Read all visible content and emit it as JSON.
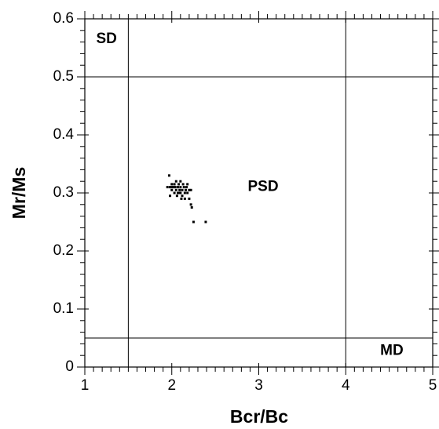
{
  "chart_data": {
    "type": "scatter",
    "xlabel": "Bcr/Bc",
    "ylabel": "Mr/Ms",
    "xlim": [
      1,
      5
    ],
    "ylim": [
      0,
      0.6
    ],
    "xticks": [
      1,
      2,
      3,
      4,
      5
    ],
    "yticks": [
      0,
      0.1,
      0.2,
      0.3,
      0.4,
      0.5,
      0.6
    ],
    "color": "#000000",
    "reference_lines": {
      "x": [
        1.5,
        4
      ],
      "y": [
        0.05,
        0.5
      ]
    },
    "annotations": [
      {
        "text": "SD",
        "x": 1.25,
        "y": 0.565
      },
      {
        "text": "PSD",
        "x": 3.05,
        "y": 0.31
      },
      {
        "text": "MD",
        "x": 4.53,
        "y": 0.028
      }
    ],
    "x": [
      1.97,
      1.95,
      1.98,
      2.0,
      2.0,
      2.02,
      2.03,
      2.05,
      2.05,
      2.07,
      2.08,
      2.08,
      2.1,
      2.1,
      2.12,
      2.12,
      2.14,
      2.15,
      2.17,
      2.18,
      2.2,
      2.2,
      2.22,
      2.23,
      2.25,
      2.39,
      1.98,
      2.03,
      2.06,
      2.1,
      2.15,
      2.18,
      2.22,
      2.0,
      2.09,
      2.13,
      2.04,
      2.16,
      2.11,
      2.07
    ],
    "values": [
      0.33,
      0.31,
      0.31,
      0.31,
      0.305,
      0.31,
      0.315,
      0.32,
      0.305,
      0.31,
      0.3,
      0.315,
      0.31,
      0.3,
      0.305,
      0.295,
      0.31,
      0.3,
      0.31,
      0.3,
      0.305,
      0.29,
      0.28,
      0.275,
      0.25,
      0.25,
      0.295,
      0.3,
      0.295,
      0.32,
      0.29,
      0.315,
      0.305,
      0.315,
      0.305,
      0.315,
      0.31,
      0.305,
      0.29,
      0.3
    ]
  }
}
